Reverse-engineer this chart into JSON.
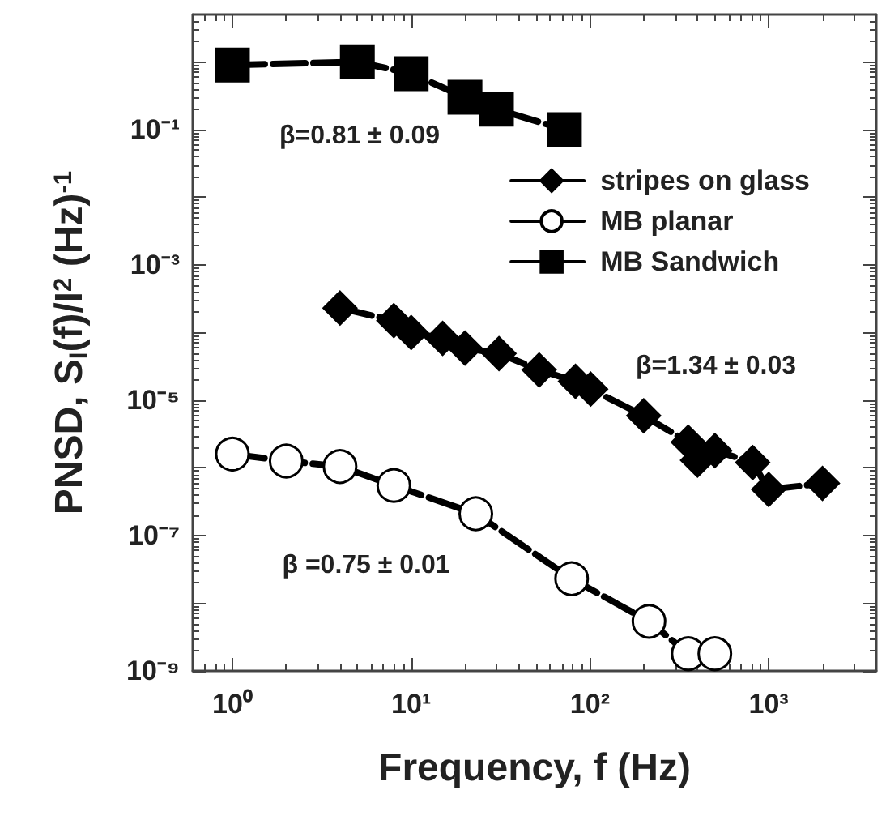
{
  "chart_data": {
    "type": "line",
    "xlabel": "Frequency, f (Hz)",
    "ylabel": "PNSD, S$_{I}$(f)/I$^{2}$ (Hz)$^{-1}$",
    "log": "xy",
    "xlim": [
      0.6,
      4000
    ],
    "ylim": [
      1e-09,
      5
    ],
    "xticks": [
      {
        "value": 1,
        "label": "10⁰"
      },
      {
        "value": 10,
        "label": "10¹"
      },
      {
        "value": 100,
        "label": "10²"
      },
      {
        "value": 1000,
        "label": "10³"
      }
    ],
    "yticks": [
      {
        "value": 1e-09,
        "label": "10⁻⁹"
      },
      {
        "value": 1e-08,
        "label": null
      },
      {
        "value": 1e-07,
        "label": "10⁻⁷"
      },
      {
        "value": 1e-06,
        "label": null
      },
      {
        "value": 1e-05,
        "label": "10⁻⁵"
      },
      {
        "value": 0.0001,
        "label": null
      },
      {
        "value": 0.001,
        "label": "10⁻³"
      },
      {
        "value": 0.01,
        "label": null
      },
      {
        "value": 0.1,
        "label": "10⁻¹"
      },
      {
        "value": 1,
        "label": null
      }
    ],
    "grid": false,
    "legend": "top right",
    "line_style": "dashed",
    "series": [
      {
        "name": "stripes on glass",
        "color": "#000000",
        "marker": "diamond",
        "x": [
          4,
          8,
          10,
          15,
          20,
          31,
          52,
          83,
          101,
          200,
          355,
          400,
          500,
          814,
          1000,
          2000
        ],
        "values": [
          0.00023,
          0.00015,
          0.0001,
          8.2e-05,
          5.9e-05,
          4.9e-05,
          2.8e-05,
          1.9e-05,
          1.46e-05,
          5.9e-06,
          2.4e-06,
          1.3e-06,
          1.8e-06,
          1.2e-06,
          4.8e-07,
          5.9e-07
        ]
      },
      {
        "name": "MB planar",
        "color": "#000000",
        "marker": "circle",
        "x": [
          1,
          2,
          4,
          8,
          23,
          79,
          214,
          355,
          500
        ],
        "values": [
          1.6e-06,
          1.26e-06,
          1.05e-06,
          5.5e-07,
          2.1e-07,
          2.3e-08,
          5.4e-09,
          1.8e-09,
          1.8e-09
        ]
      },
      {
        "name": "MB Sandwich",
        "color": "#000000",
        "marker": "square",
        "x": [
          1,
          5,
          10,
          20,
          30,
          72
        ],
        "values": [
          0.9,
          1.0,
          0.67,
          0.3,
          0.2,
          0.1
        ]
      }
    ],
    "annotations": [
      "β=0.81 ± 0.09",
      "β=1.34 ± 0.03",
      "β =0.75 ± 0.01"
    ]
  }
}
